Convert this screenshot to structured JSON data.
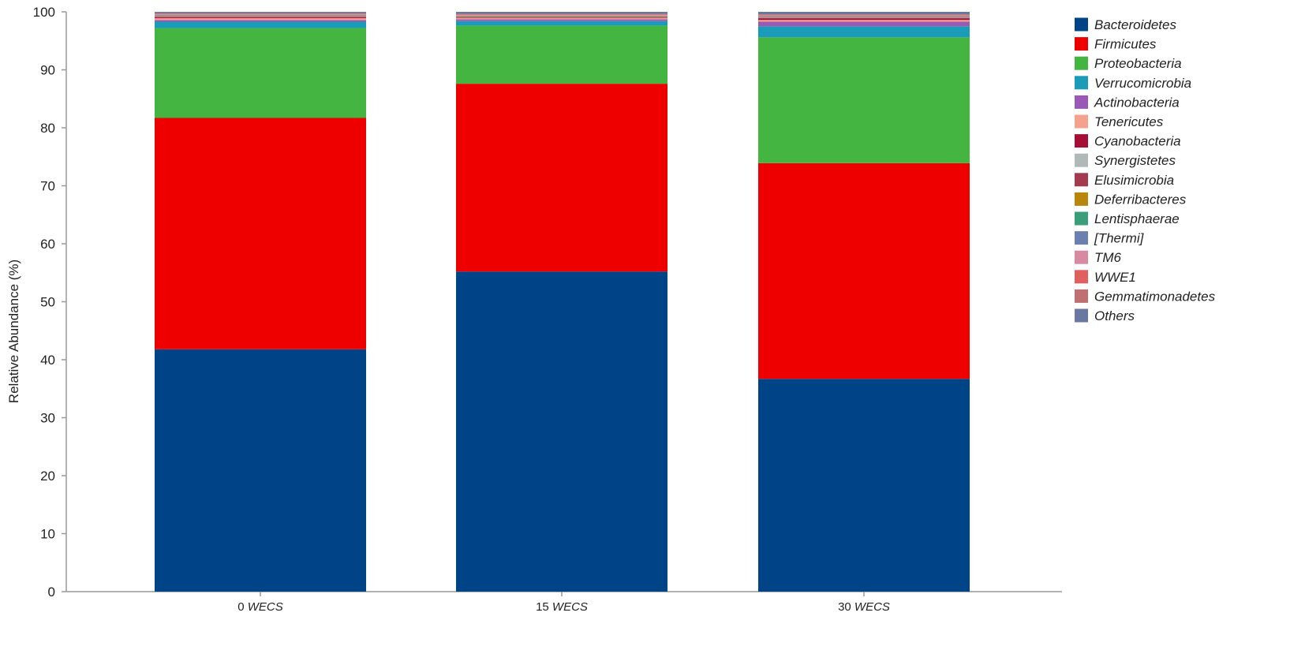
{
  "chart_data": {
    "type": "bar",
    "stacked": true,
    "ylabel": "Relative Abundance (%)",
    "xlabel": "",
    "ylim": [
      0,
      100
    ],
    "yticks": [
      0,
      10,
      20,
      30,
      40,
      50,
      60,
      70,
      80,
      90,
      100
    ],
    "grid": false,
    "legend_position": "right",
    "categories": [
      {
        "num": "0",
        "unit": "WECS"
      },
      {
        "num": "15",
        "unit": "WECS"
      },
      {
        "num": "30",
        "unit": "WECS"
      }
    ],
    "series": [
      {
        "name": "Bacteroidetes",
        "color": "#004488",
        "values": [
          41.8,
          55.2,
          36.7
        ]
      },
      {
        "name": "Firmicutes",
        "color": "#ee0000",
        "values": [
          39.9,
          32.4,
          37.2
        ]
      },
      {
        "name": "Proteobacteria",
        "color": "#44b541",
        "values": [
          15.5,
          10.0,
          21.7
        ]
      },
      {
        "name": "Verrucomicrobia",
        "color": "#1a9bb8",
        "values": [
          1.1,
          0.8,
          1.9
        ]
      },
      {
        "name": "Actinobacteria",
        "color": "#9b59b6",
        "values": [
          0.3,
          0.3,
          0.8
        ]
      },
      {
        "name": "Tenericutes",
        "color": "#f4a28c",
        "values": [
          0.3,
          0.2,
          0.3
        ]
      },
      {
        "name": "Cyanobacteria",
        "color": "#a50f35",
        "values": [
          0.2,
          0.1,
          0.3
        ]
      },
      {
        "name": "Synergistetes",
        "color": "#b0b8b8",
        "values": [
          0.1,
          0.1,
          0.1
        ]
      },
      {
        "name": "Elusimicrobia",
        "color": "#a33a4e",
        "values": [
          0.1,
          0.1,
          0.1
        ]
      },
      {
        "name": "Deferribacteres",
        "color": "#b8860b",
        "values": [
          0.05,
          0.05,
          0.05
        ]
      },
      {
        "name": "Lentisphaerae",
        "color": "#3a9e7a",
        "values": [
          0.05,
          0.05,
          0.05
        ]
      },
      {
        "name": "[Thermi]",
        "color": "#6b7fb0",
        "values": [
          0.05,
          0.05,
          0.05
        ]
      },
      {
        "name": "TM6",
        "color": "#d88aa0",
        "values": [
          0.1,
          0.1,
          0.1
        ]
      },
      {
        "name": "WWE1",
        "color": "#e06060",
        "values": [
          0.1,
          0.1,
          0.1
        ]
      },
      {
        "name": "Gemmatimonadetes",
        "color": "#c07070",
        "values": [
          0.1,
          0.1,
          0.1
        ]
      },
      {
        "name": "Others",
        "color": "#6878a0",
        "values": [
          0.25,
          0.35,
          0.45
        ]
      }
    ]
  }
}
